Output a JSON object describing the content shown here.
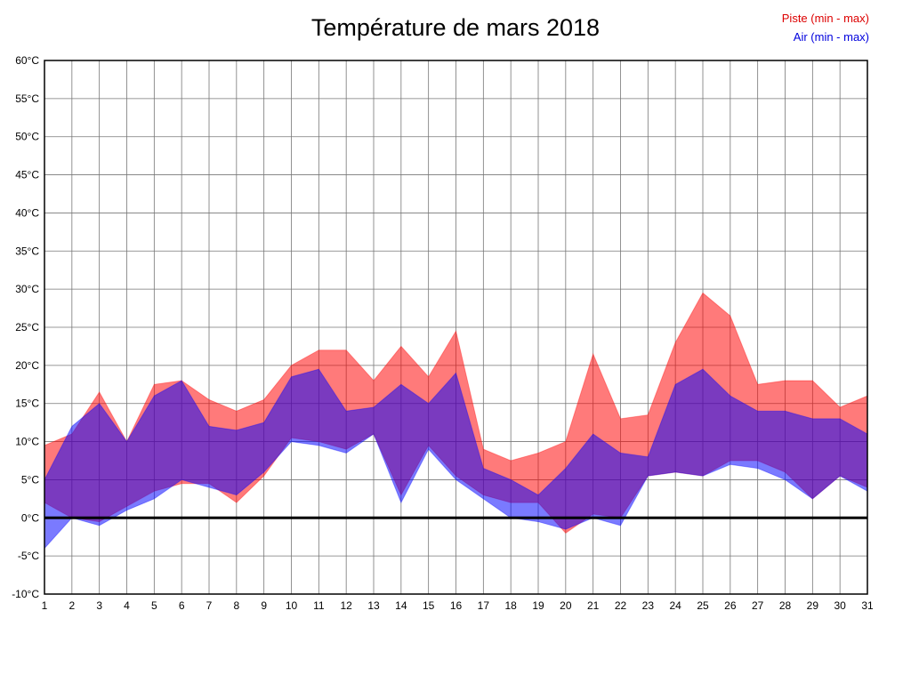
{
  "title": "Température de mars 2018",
  "legend": [
    {
      "label": "Piste (min - max)",
      "color": "#dd0000"
    },
    {
      "label": "Air (min - max)",
      "color": "#0000dd"
    }
  ],
  "chart_data": {
    "type": "area",
    "title": "Température de mars 2018",
    "xlabel": "",
    "ylabel": "",
    "ylim": [
      -10,
      60
    ],
    "grid": true,
    "legend_position": "top-right",
    "x": [
      1,
      2,
      3,
      4,
      5,
      6,
      7,
      8,
      9,
      10,
      11,
      12,
      13,
      14,
      15,
      16,
      17,
      18,
      19,
      20,
      21,
      22,
      23,
      24,
      25,
      26,
      27,
      28,
      29,
      30,
      31
    ],
    "x_tick_labels": [
      "1",
      "2",
      "3",
      "4",
      "5",
      "6",
      "7",
      "8",
      "9",
      "10",
      "11",
      "12",
      "13",
      "14",
      "15",
      "16",
      "17",
      "18",
      "19",
      "20",
      "21",
      "22",
      "23",
      "24",
      "25",
      "26",
      "27",
      "28",
      "29",
      "30",
      "31"
    ],
    "y_ticks": [
      {
        "value": 60,
        "label": "60°C"
      },
      {
        "value": 55,
        "label": "55°C"
      },
      {
        "value": 50,
        "label": "50°C"
      },
      {
        "value": 45,
        "label": "45°C"
      },
      {
        "value": 40,
        "label": "40°C"
      },
      {
        "value": 35,
        "label": "35°C"
      },
      {
        "value": 30,
        "label": "30°C"
      },
      {
        "value": 25,
        "label": "25°C"
      },
      {
        "value": 20,
        "label": "20°C"
      },
      {
        "value": 15,
        "label": "15°C"
      },
      {
        "value": 10,
        "label": "10°C"
      },
      {
        "value": 5,
        "label": "5°C"
      },
      {
        "value": 0,
        "label": "0°C"
      },
      {
        "value": -5,
        "label": "-5°C"
      },
      {
        "value": -10,
        "label": "-10°C"
      }
    ],
    "zero_line": true,
    "series": [
      {
        "name": "Piste (min - max)",
        "color": "#ff0000",
        "min": [
          2,
          0,
          -0.5,
          1.5,
          3.5,
          4.5,
          4.5,
          2,
          5.5,
          10.5,
          10,
          9,
          11,
          3,
          9.5,
          5.5,
          3,
          2,
          2,
          -2,
          0.5,
          0,
          5.5,
          6,
          5.5,
          7.5,
          7.5,
          6,
          2.5,
          5.5,
          4
        ],
        "max": [
          9.5,
          11,
          16.5,
          10,
          17.5,
          18,
          15.5,
          14,
          15.5,
          20,
          22,
          22,
          18,
          22.5,
          18.5,
          24.5,
          9,
          7.5,
          8.5,
          10,
          21.5,
          13,
          13.5,
          23,
          29.5,
          26.5,
          17.5,
          18,
          18,
          14.5,
          16
        ]
      },
      {
        "name": "Air (min - max)",
        "color": "#0000ff",
        "min": [
          -4,
          0,
          -1,
          1,
          2.5,
          5,
          4,
          3,
          6,
          10,
          9.5,
          8.5,
          11,
          2,
          9,
          5,
          2.5,
          0,
          -0.5,
          -1.5,
          0,
          -1,
          5.5,
          6,
          5.5,
          7,
          6.5,
          5,
          2.5,
          5.5,
          3.5
        ],
        "max": [
          5,
          12,
          15,
          10,
          16,
          18,
          12,
          11.5,
          12.5,
          18.5,
          19.5,
          14,
          14.5,
          17.5,
          15,
          19,
          6.5,
          5,
          3,
          6.5,
          11,
          8.5,
          8,
          17.5,
          19.5,
          16,
          14,
          14,
          13,
          13,
          11
        ]
      }
    ]
  }
}
